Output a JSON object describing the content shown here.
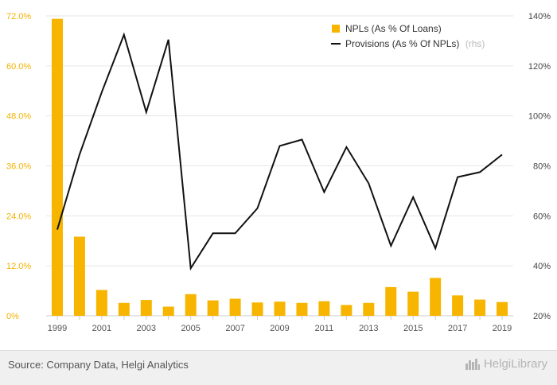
{
  "chart_data": {
    "type": "bar+line",
    "categories": [
      "1999",
      "2000",
      "2001",
      "2002",
      "2003",
      "2004",
      "2005",
      "2006",
      "2007",
      "2008",
      "2009",
      "2010",
      "2011",
      "2012",
      "2013",
      "2014",
      "2015",
      "2016",
      "2017",
      "2018",
      "2019"
    ],
    "x_tick_labels": [
      "1999",
      "2001",
      "2003",
      "2005",
      "2007",
      "2009",
      "2011",
      "2013",
      "2015",
      "2017",
      "2019"
    ],
    "series": [
      {
        "name": "NPLs (As % Of Loans)",
        "type": "bar",
        "axis": "left",
        "color": "#f7b500",
        "values": [
          71.3,
          19.0,
          6.2,
          3.1,
          3.8,
          2.2,
          5.2,
          3.7,
          4.1,
          3.2,
          3.4,
          3.1,
          3.5,
          2.6,
          3.1,
          6.9,
          5.8,
          9.1,
          4.9,
          3.9,
          3.3
        ]
      },
      {
        "name": "Provisions (As % Of NPLs)",
        "name_suffix": "(rhs)",
        "type": "line",
        "axis": "right",
        "color": "#111111",
        "values": [
          54.5,
          84.5,
          109.5,
          132.5,
          101.5,
          130.5,
          39.0,
          53.0,
          53.0,
          63.0,
          88.0,
          90.5,
          69.5,
          87.5,
          73.0,
          48.0,
          67.5,
          47.0,
          75.5,
          77.5,
          84.5
        ]
      }
    ],
    "y_left": {
      "min": 0,
      "max": 72,
      "ticks": [
        "0%",
        "12.0%",
        "24.0%",
        "36.0%",
        "48.0%",
        "60.0%",
        "72.0%"
      ]
    },
    "y_right": {
      "min": 20,
      "max": 140,
      "ticks": [
        "20%",
        "40%",
        "60%",
        "80%",
        "100%",
        "120%",
        "140%"
      ]
    },
    "legend_position": "top-right",
    "grid": "horizontal"
  },
  "footer": {
    "source": "Source: Company Data, Helgi Analytics",
    "brand": "HelgiLibrary",
    "brand_icon": "city-skyline-icon"
  }
}
